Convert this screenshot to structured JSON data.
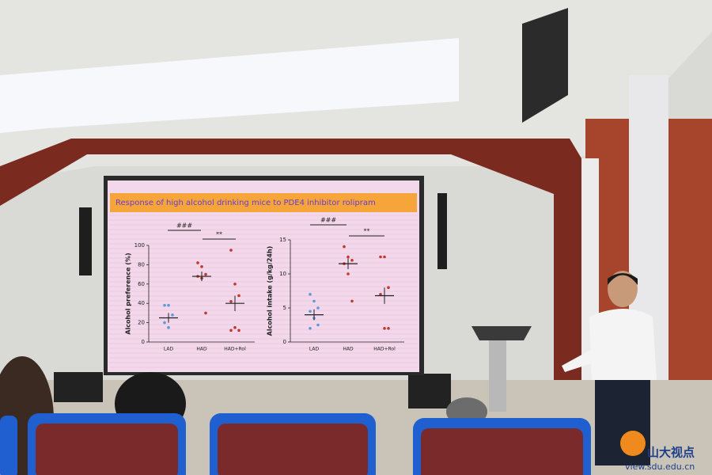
{
  "slide_title": "Response of high alcohol drinking mice to PDE4 inhibitor rolipram",
  "chart_data": [
    {
      "type": "scatter",
      "y_label": "Alcohol preference (%)",
      "categories": [
        "LAD",
        "HAD",
        "HAD+Rol"
      ],
      "points": [
        [
          38,
          38,
          28,
          20,
          15
        ],
        [
          82,
          78,
          70,
          68,
          66,
          30
        ],
        [
          95,
          60,
          48,
          42,
          15,
          12,
          12
        ]
      ],
      "means": [
        25,
        68,
        40
      ],
      "errors": [
        5,
        5,
        8
      ],
      "colors": [
        "#5b9bd5",
        "#c0392b",
        "#c0392b"
      ],
      "ylim": [
        0,
        100
      ],
      "yticks": [
        0,
        20,
        40,
        60,
        80,
        100
      ],
      "annotations": [
        {
          "text": "###"
        },
        {
          "text": "**"
        }
      ]
    },
    {
      "type": "scatter",
      "y_label": "Alcohol intake (g/kg/24h)",
      "categories": [
        "LAD",
        "HAD",
        "HAD+Rol"
      ],
      "points": [
        [
          7,
          6,
          5,
          4.5,
          3.5,
          2.5,
          2
        ],
        [
          14,
          12.5,
          12,
          11.5,
          10,
          6
        ],
        [
          12.5,
          12.5,
          8,
          7,
          2,
          2
        ]
      ],
      "means": [
        4,
        11.5,
        6.8
      ],
      "errors": [
        0.8,
        0.8,
        1.2
      ],
      "colors": [
        "#5b9bd5",
        "#c0392b",
        "#c0392b"
      ],
      "ylim": [
        0,
        15
      ],
      "yticks": [
        0,
        5,
        10,
        15
      ],
      "annotations": [
        {
          "text": "###"
        },
        {
          "text": "**"
        }
      ]
    }
  ],
  "watermark": {
    "name": "山大视点",
    "url": "view.sdu.edu.cn"
  }
}
